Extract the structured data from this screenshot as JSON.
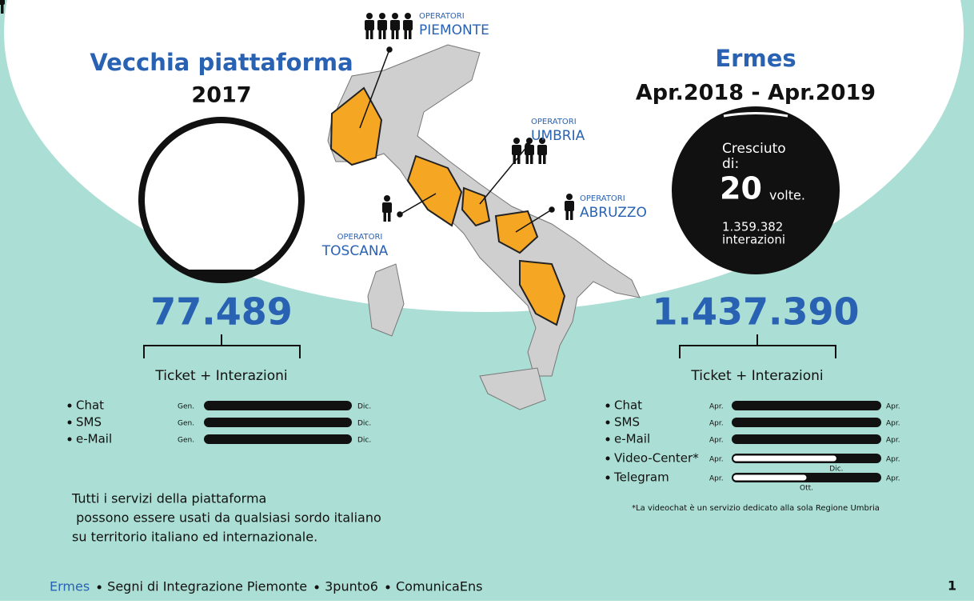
{
  "left": {
    "title": "Vecchia piattaforma",
    "year": "2017",
    "total": "77.489",
    "caption": "Ticket + Interazioni",
    "channels": [
      {
        "name": "Chat",
        "start": "Gen.",
        "end": "Dic."
      },
      {
        "name": "SMS",
        "start": "Gen.",
        "end": "Dic."
      },
      {
        "name": "e-Mail",
        "start": "Gen.",
        "end": "Dic."
      }
    ]
  },
  "right": {
    "title": "Ermes",
    "period": "Apr.2018 - Apr.2019",
    "circle": {
      "line1": "Cresciuto",
      "line2": "di:",
      "big": "20",
      "unit": "volte.",
      "sub1": "1.359.382",
      "sub2": "interazioni"
    },
    "total": "1.437.390",
    "caption": "Ticket + Interazioni",
    "channels": [
      {
        "name": "Chat",
        "start": "Apr.",
        "end": "Apr."
      },
      {
        "name": "SMS",
        "start": "Apr.",
        "end": "Apr."
      },
      {
        "name": "e-Mail",
        "start": "Apr.",
        "end": "Apr."
      },
      {
        "name": "Video-Center*",
        "start": "Apr.",
        "end": "Apr.",
        "note": "Dic."
      },
      {
        "name": "Telegram",
        "start": "Apr.",
        "end": "Apr.",
        "note": "Ott."
      }
    ],
    "footnote": "*La videochat è un servizio dedicato alla sola Regione Umbria"
  },
  "regions": [
    {
      "label": "OPERATORI",
      "name": "PIEMONTE"
    },
    {
      "label": "OPERATORI",
      "name": "UMBRIA"
    },
    {
      "label": "OPERATORI",
      "name": "TOSCANA"
    },
    {
      "label": "OPERATORI",
      "name": "ABRUZZO"
    }
  ],
  "description": [
    "Tutti i servizi della piattaforma",
    " possono essere usati da qualsiasi sordo italiano",
    "su territorio italiano ed internazionale."
  ],
  "footer": {
    "items": [
      "Ermes",
      "Segni di Integrazione Piemonte",
      "3punto6",
      "ComunicaEns"
    ],
    "page": "1"
  }
}
